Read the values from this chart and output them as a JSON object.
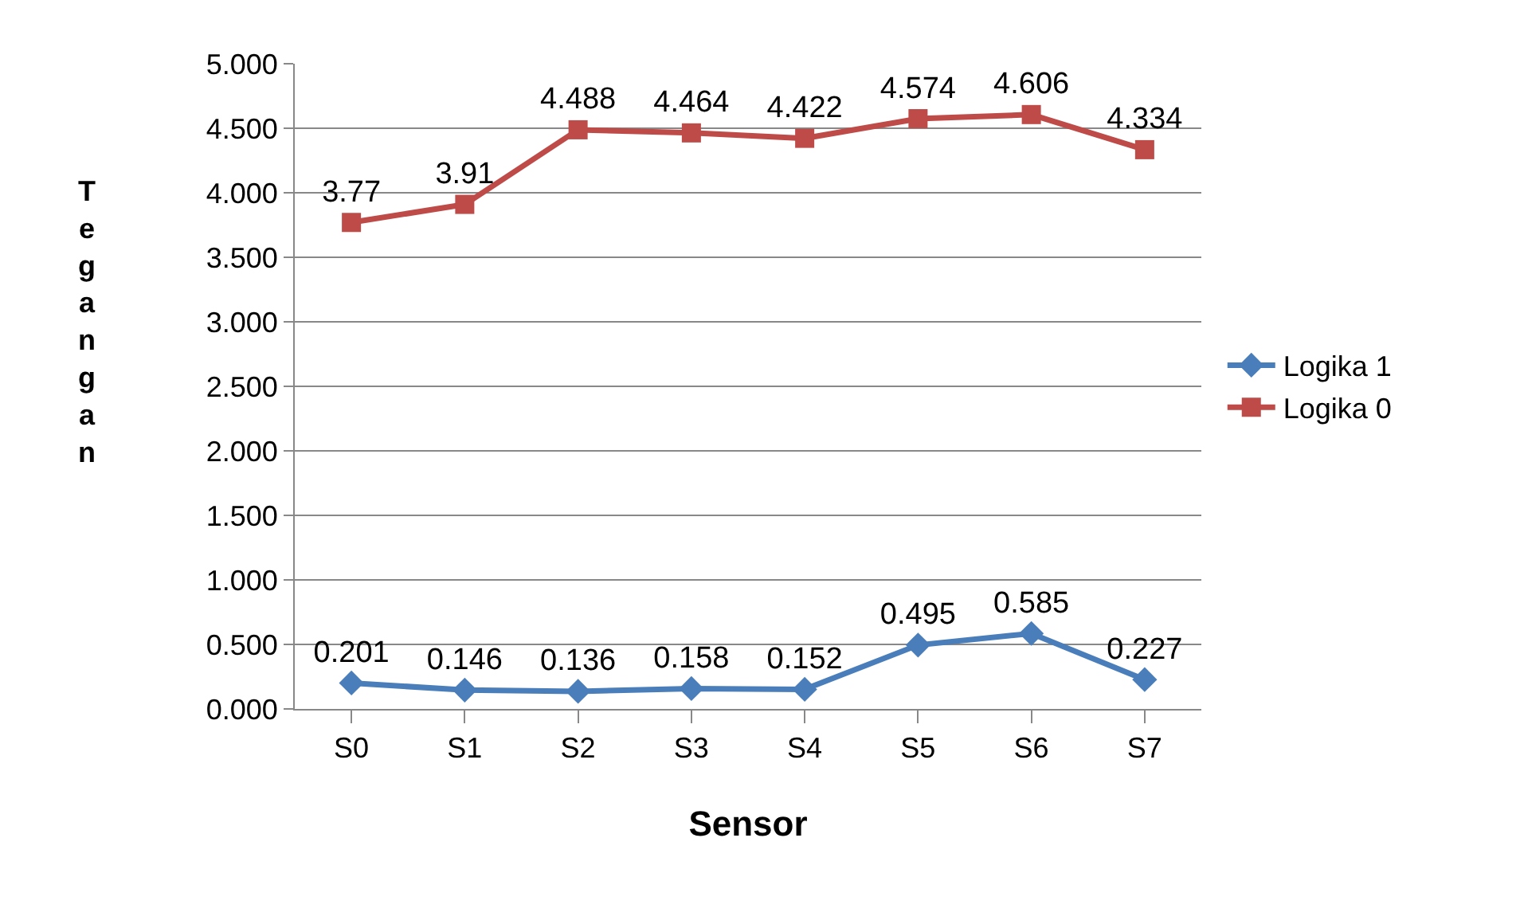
{
  "chart_data": {
    "type": "line",
    "xlabel": "Sensor",
    "ylabel": "Tegangan",
    "categories": [
      "S0",
      "S1",
      "S2",
      "S3",
      "S4",
      "S5",
      "S6",
      "S7"
    ],
    "series": [
      {
        "name": "Logika 1",
        "color": "#4a7ebb",
        "marker": "diamond",
        "values": [
          0.201,
          0.146,
          0.136,
          0.158,
          0.152,
          0.495,
          0.585,
          0.227
        ]
      },
      {
        "name": "Logika 0",
        "color": "#be4b48",
        "marker": "square",
        "values": [
          3.77,
          3.91,
          4.488,
          4.464,
          4.422,
          4.574,
          4.606,
          4.334
        ]
      }
    ],
    "ylim": [
      0,
      5
    ],
    "yticks": [
      {
        "value": 0,
        "label": "0.000"
      },
      {
        "value": 0.5,
        "label": "0.500"
      },
      {
        "value": 1,
        "label": "1.000"
      },
      {
        "value": 1.5,
        "label": "1.500"
      },
      {
        "value": 2,
        "label": "2.000"
      },
      {
        "value": 2.5,
        "label": "2.500"
      },
      {
        "value": 3,
        "label": "3.000"
      },
      {
        "value": 3.5,
        "label": "3.500"
      },
      {
        "value": 4,
        "label": "4.000"
      },
      {
        "value": 4.5,
        "label": "4.500"
      },
      {
        "value": 5,
        "label": "5.000"
      }
    ],
    "grid": "y",
    "legend": "right",
    "data_labels": true,
    "line_style": "solid"
  }
}
